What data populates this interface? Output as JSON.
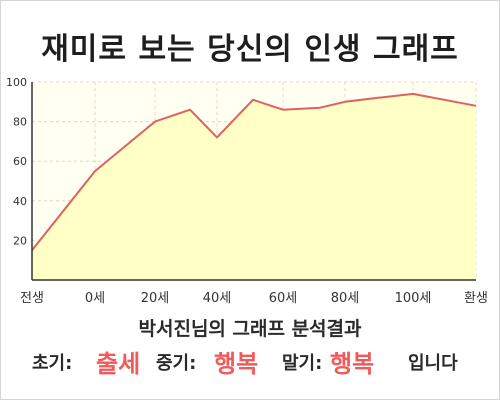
{
  "title": "재미로 보는 당신의 인생 그래프",
  "chart_data": {
    "type": "area",
    "title": "재미로 보는 당신의 인생 그래프",
    "xlabel": "",
    "ylabel": "",
    "x_ticks": [
      "전생",
      "0세",
      "20세",
      "40세",
      "60세",
      "80세",
      "100세",
      "환생"
    ],
    "y_ticks": [
      "20",
      "40",
      "60",
      "80",
      "100"
    ],
    "ylim": [
      0,
      100
    ],
    "grid": true,
    "series": [
      {
        "x": [
          "전생",
          "0세",
          "20세",
          "30세",
          "40세",
          "50세",
          "60세",
          "70세",
          "80세",
          "90세",
          "100세",
          "환생"
        ],
        "values": [
          15,
          55,
          80,
          86,
          72,
          91,
          86,
          87,
          90,
          92,
          94,
          88
        ]
      }
    ],
    "fill_color": "#ffffc6",
    "line_color": "#e06060",
    "grid_color": "#dcdcc0"
  },
  "caption": "박서진님의 그래프 분석결과",
  "verdict": {
    "early_label": "초기:",
    "early_value": "출세",
    "mid_label": "중기:",
    "mid_value": "행복",
    "late_label": "말기:",
    "late_value": "행복",
    "ending": "입니다"
  },
  "colors": {
    "highlight": "#f25a5a",
    "area_fill": "#ffffc6",
    "line": "#e06060"
  }
}
